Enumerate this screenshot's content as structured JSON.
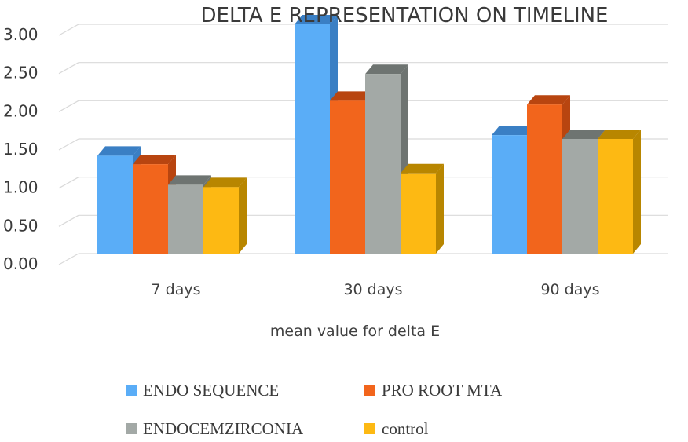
{
  "chart_data": {
    "type": "bar",
    "title": "DELTA E REPRESENTATION ON TIMELINE",
    "xlabel": "mean value for delta E",
    "ylabel": "",
    "categories": [
      "7 days",
      "30 days",
      "90 days"
    ],
    "y_ticks": [
      "0.00",
      "0.50",
      "1.00",
      "1.50",
      "2.00",
      "2.50",
      "3.00"
    ],
    "ylim": [
      0,
      3
    ],
    "grid": true,
    "legend_position": "bottom",
    "three_d": true,
    "series": [
      {
        "name": "ENDO SEQUENCE",
        "values": [
          1.28,
          3.0,
          1.55
        ],
        "color": "#5aadf7",
        "side_color": "#3a7fc4"
      },
      {
        "name": "PRO ROOT MTA",
        "values": [
          1.17,
          2.0,
          1.95
        ],
        "color": "#f2651c",
        "side_color": "#b84510"
      },
      {
        "name": "ENDOCEMZIRCONIA",
        "values": [
          0.9,
          2.35,
          1.5
        ],
        "color": "#a3a9a6",
        "side_color": "#6e7471"
      },
      {
        "name": "control",
        "values": [
          0.87,
          1.05,
          1.5
        ],
        "color": "#fdb913",
        "side_color": "#b88600"
      }
    ]
  }
}
